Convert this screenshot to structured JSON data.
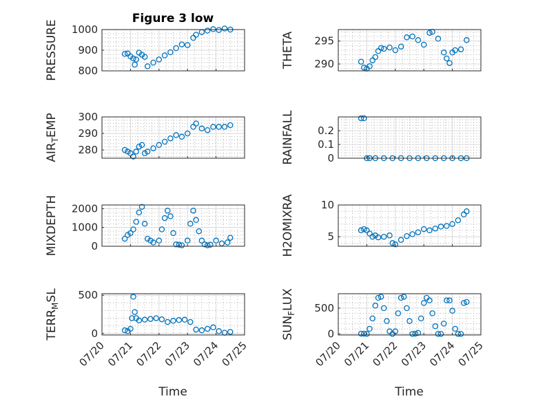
{
  "figure": {
    "title": "Figure 3 low",
    "xlabel": "Time",
    "x_tick_labels": [
      "07/20",
      "07/21",
      "07/22",
      "07/23",
      "07/24",
      "07/25"
    ],
    "marker_color": "#0072BD"
  },
  "chart_data": [
    {
      "type": "scatter",
      "ylabel": "PRESSURE",
      "ylim": [
        800,
        1000
      ],
      "yticks": [
        800,
        900,
        1000
      ],
      "x": [
        20.8,
        20.9,
        21.0,
        21.1,
        21.15,
        21.2,
        21.3,
        21.4,
        21.5,
        21.6,
        21.8,
        22.0,
        22.2,
        22.4,
        22.6,
        22.8,
        23.0,
        23.2,
        23.3,
        23.5,
        23.7,
        23.9,
        24.1,
        24.3,
        24.5
      ],
      "y": [
        882,
        884,
        870,
        860,
        830,
        855,
        888,
        878,
        868,
        822,
        840,
        855,
        875,
        890,
        910,
        928,
        925,
        960,
        975,
        988,
        995,
        1002,
        998,
        1005,
        1000
      ]
    },
    {
      "type": "scatter",
      "ylabel": "THETA",
      "ylim": [
        288.5,
        297.5
      ],
      "yticks": [
        290,
        295
      ],
      "x": [
        20.8,
        20.9,
        21.0,
        21.1,
        21.2,
        21.3,
        21.4,
        21.5,
        21.6,
        21.8,
        22.0,
        22.2,
        22.4,
        22.6,
        22.8,
        23.0,
        23.2,
        23.3,
        23.5,
        23.7,
        23.8,
        23.9,
        24.0,
        24.1,
        24.3,
        24.5
      ],
      "y": [
        290.5,
        289.2,
        289.0,
        289.5,
        290.8,
        291.5,
        292.8,
        293.5,
        293.3,
        293.6,
        293.0,
        293.8,
        295.8,
        296.0,
        295.2,
        294.2,
        296.8,
        297.0,
        295.5,
        292.5,
        291.2,
        290.2,
        292.5,
        293.0,
        293.2,
        295.2
      ]
    },
    {
      "type": "scatter",
      "ylabel": "AIR_TEMP",
      "ylim": [
        275,
        300
      ],
      "yticks": [
        280,
        290,
        300
      ],
      "x": [
        20.8,
        20.9,
        21.0,
        21.1,
        21.2,
        21.3,
        21.4,
        21.5,
        21.6,
        21.8,
        22.0,
        22.2,
        22.4,
        22.6,
        22.8,
        23.0,
        23.2,
        23.3,
        23.5,
        23.7,
        23.9,
        24.1,
        24.3,
        24.5
      ],
      "y": [
        280,
        279,
        278,
        276,
        279,
        282,
        283,
        278,
        279,
        281,
        283,
        285,
        287,
        289,
        288,
        290,
        294,
        296,
        293,
        292,
        294,
        294,
        294,
        295
      ]
    },
    {
      "type": "scatter",
      "ylabel": "RAINFALL",
      "ylim": [
        0,
        0.3
      ],
      "yticks": [
        0,
        0.1,
        0.2
      ],
      "x": [
        20.8,
        20.9,
        21.0,
        21.1,
        21.3,
        21.6,
        21.9,
        22.2,
        22.5,
        22.8,
        23.1,
        23.4,
        23.7,
        24.0,
        24.3,
        24.5
      ],
      "y": [
        0.29,
        0.29,
        0,
        0,
        0,
        0,
        0,
        0,
        0,
        0,
        0,
        0,
        0,
        0,
        0,
        0
      ]
    },
    {
      "type": "scatter",
      "ylabel": "MIXDEPTH",
      "ylim": [
        0,
        2200
      ],
      "yticks": [
        0,
        1000,
        2000
      ],
      "x": [
        20.8,
        20.9,
        21.0,
        21.1,
        21.2,
        21.3,
        21.4,
        21.5,
        21.6,
        21.7,
        21.8,
        22.0,
        22.1,
        22.2,
        22.3,
        22.4,
        22.5,
        22.6,
        22.7,
        22.8,
        23.0,
        23.1,
        23.2,
        23.3,
        23.4,
        23.5,
        23.6,
        23.7,
        23.8,
        24.0,
        24.2,
        24.4,
        24.5
      ],
      "y": [
        400,
        600,
        700,
        900,
        1300,
        1800,
        2100,
        1200,
        400,
        300,
        200,
        300,
        900,
        1500,
        1900,
        1600,
        700,
        100,
        80,
        50,
        300,
        1200,
        1900,
        1400,
        800,
        300,
        100,
        50,
        80,
        300,
        150,
        200,
        450
      ]
    },
    {
      "type": "scatter",
      "ylabel": "H2OMIXRA",
      "ylim": [
        3.5,
        10
      ],
      "yticks": [
        5,
        10
      ],
      "x": [
        20.8,
        20.9,
        21.0,
        21.1,
        21.2,
        21.3,
        21.4,
        21.6,
        21.8,
        21.9,
        22.0,
        22.2,
        22.4,
        22.6,
        22.8,
        23.0,
        23.2,
        23.4,
        23.6,
        23.8,
        24.0,
        24.2,
        24.4,
        24.5
      ],
      "y": [
        6.0,
        6.2,
        6.0,
        5.5,
        5.0,
        5.2,
        4.9,
        5.0,
        5.2,
        4.0,
        3.8,
        4.5,
        5.1,
        5.4,
        5.7,
        6.2,
        6.0,
        6.3,
        6.6,
        6.7,
        7.0,
        7.6,
        8.5,
        9.0
      ]
    },
    {
      "type": "scatter",
      "ylabel": "TERR_MSL",
      "ylim": [
        -20,
        520
      ],
      "yticks": [
        0,
        500
      ],
      "x": [
        20.8,
        20.9,
        21.0,
        21.05,
        21.1,
        21.15,
        21.2,
        21.3,
        21.5,
        21.7,
        21.9,
        22.1,
        22.3,
        22.5,
        22.7,
        22.9,
        23.1,
        23.3,
        23.5,
        23.7,
        23.9,
        24.1,
        24.3,
        24.5
      ],
      "y": [
        40,
        30,
        60,
        200,
        480,
        280,
        200,
        170,
        180,
        190,
        200,
        185,
        150,
        165,
        175,
        180,
        150,
        50,
        40,
        60,
        80,
        30,
        10,
        20
      ]
    },
    {
      "type": "scatter",
      "ylabel": "SUN_FLUX",
      "ylim": [
        -20,
        780
      ],
      "yticks": [
        0,
        500
      ],
      "x": [
        20.8,
        20.9,
        21.0,
        21.1,
        21.2,
        21.3,
        21.4,
        21.5,
        21.6,
        21.7,
        21.8,
        21.9,
        22.0,
        22.1,
        22.2,
        22.3,
        22.4,
        22.5,
        22.6,
        22.7,
        22.8,
        22.9,
        23.0,
        23.1,
        23.2,
        23.3,
        23.4,
        23.5,
        23.6,
        23.7,
        23.8,
        23.9,
        24.0,
        24.1,
        24.2,
        24.3,
        24.4,
        24.5
      ],
      "y": [
        5,
        5,
        0,
        100,
        300,
        550,
        700,
        720,
        500,
        250,
        50,
        0,
        50,
        400,
        700,
        720,
        500,
        250,
        0,
        5,
        20,
        300,
        600,
        700,
        650,
        400,
        150,
        0,
        0,
        200,
        650,
        650,
        450,
        100,
        0,
        0,
        600,
        620
      ]
    }
  ]
}
